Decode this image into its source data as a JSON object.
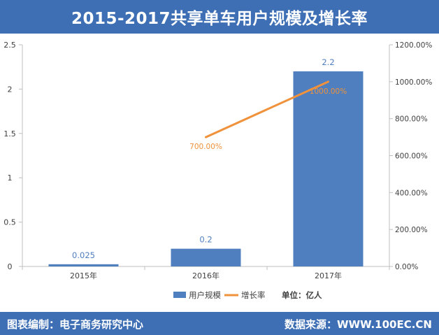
{
  "header": {
    "title": "2015-2017共享单车用户规模及增长率"
  },
  "footer": {
    "left_text": "图表编制：电子商务研究中心",
    "right_text": "数据来源：WWW.100EC.CN"
  },
  "chart_data": {
    "type": "bar",
    "title": "2015-2017共享单车用户规模及增长率",
    "categories": [
      "2015年",
      "2016年",
      "2017年"
    ],
    "series": [
      {
        "name": "用户规模",
        "type": "bar",
        "axis": "left",
        "values": [
          0.025,
          0.2,
          2.2
        ],
        "labels": [
          "0.025",
          "0.2",
          "2.2"
        ],
        "color": "#4f7fbf"
      },
      {
        "name": "增长率",
        "type": "line",
        "axis": "right",
        "values": [
          null,
          700,
          1000
        ],
        "labels": [
          "",
          "700.00%",
          "1000.00%"
        ],
        "color": "#f0923b"
      }
    ],
    "left_axis": {
      "min": 0,
      "max": 2.5,
      "ticks": [
        0,
        0.5,
        1,
        1.5,
        2,
        2.5
      ],
      "tick_labels": [
        "0",
        "0.5",
        "1",
        "1.5",
        "2",
        "2.5"
      ]
    },
    "right_axis": {
      "min": 0,
      "max": 1200,
      "ticks": [
        0,
        200,
        400,
        600,
        800,
        1000,
        1200
      ],
      "tick_labels": [
        "0.00%",
        "200.00%",
        "400.00%",
        "600.00%",
        "800.00%",
        "1000.00%",
        "1200.00%"
      ]
    },
    "legend": {
      "position": "bottom",
      "unit_label": "单位：亿人"
    },
    "grid": false,
    "colors": {
      "bar": "#4f7fbf",
      "line": "#f0923b",
      "header": "#3e6fb5",
      "axis": "#bfbfbf"
    }
  }
}
